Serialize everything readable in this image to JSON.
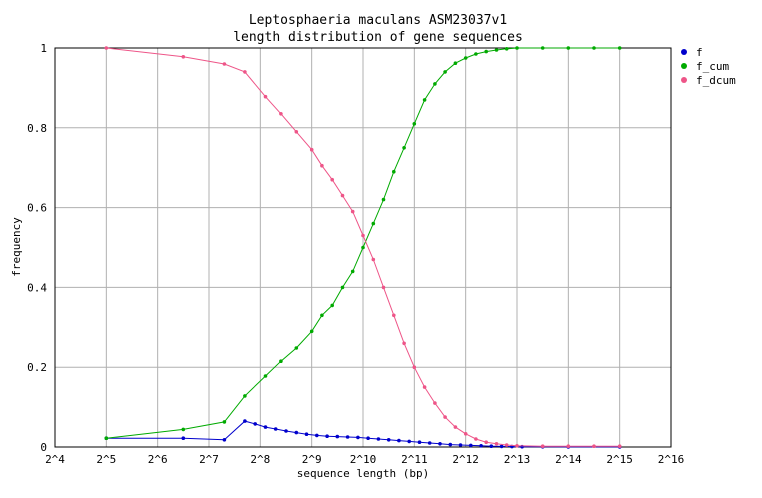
{
  "chart_data": {
    "type": "line",
    "title": "Leptosphaeria maculans ASM23037v1",
    "subtitle": "length distribution of gene sequences",
    "xlabel": "sequence length (bp)",
    "ylabel": "frequency",
    "x_scale": "log2",
    "xlim_exponent": [
      4,
      16
    ],
    "ylim": [
      0,
      1
    ],
    "x_ticks": [
      "2^4",
      "2^5",
      "2^6",
      "2^7",
      "2^8",
      "2^9",
      "2^10",
      "2^11",
      "2^12",
      "2^13",
      "2^14",
      "2^15",
      "2^16"
    ],
    "y_ticks": [
      "0",
      "0.2",
      "0.4",
      "0.6",
      "0.8",
      "1"
    ],
    "grid": true,
    "legend_position": "top-right",
    "series": [
      {
        "name": "f",
        "color": "#0000cc",
        "points": [
          [
            5.0,
            0.022
          ],
          [
            6.5,
            0.022
          ],
          [
            7.3,
            0.018
          ],
          [
            7.7,
            0.065
          ],
          [
            7.9,
            0.058
          ],
          [
            8.1,
            0.05
          ],
          [
            8.3,
            0.045
          ],
          [
            8.5,
            0.04
          ],
          [
            8.7,
            0.036
          ],
          [
            8.9,
            0.032
          ],
          [
            9.1,
            0.029
          ],
          [
            9.3,
            0.027
          ],
          [
            9.5,
            0.026
          ],
          [
            9.7,
            0.025
          ],
          [
            9.9,
            0.024
          ],
          [
            10.1,
            0.022
          ],
          [
            10.3,
            0.02
          ],
          [
            10.5,
            0.018
          ],
          [
            10.7,
            0.016
          ],
          [
            10.9,
            0.014
          ],
          [
            11.1,
            0.012
          ],
          [
            11.3,
            0.01
          ],
          [
            11.5,
            0.008
          ],
          [
            11.7,
            0.006
          ],
          [
            11.9,
            0.005
          ],
          [
            12.1,
            0.004
          ],
          [
            12.3,
            0.003
          ],
          [
            12.5,
            0.002
          ],
          [
            12.7,
            0.0015
          ],
          [
            12.9,
            0.001
          ],
          [
            13.1,
            0.0008
          ],
          [
            13.5,
            0.0005
          ],
          [
            14.0,
            0.0003
          ],
          [
            15.0,
            0.0002
          ]
        ]
      },
      {
        "name": "f_cum",
        "color": "#00aa00",
        "points": [
          [
            5.0,
            0.022
          ],
          [
            6.5,
            0.044
          ],
          [
            7.3,
            0.063
          ],
          [
            7.7,
            0.128
          ],
          [
            8.1,
            0.178
          ],
          [
            8.4,
            0.215
          ],
          [
            8.7,
            0.248
          ],
          [
            9.0,
            0.29
          ],
          [
            9.2,
            0.33
          ],
          [
            9.4,
            0.355
          ],
          [
            9.6,
            0.4
          ],
          [
            9.8,
            0.44
          ],
          [
            10.0,
            0.5
          ],
          [
            10.2,
            0.56
          ],
          [
            10.4,
            0.62
          ],
          [
            10.6,
            0.69
          ],
          [
            10.8,
            0.75
          ],
          [
            11.0,
            0.81
          ],
          [
            11.2,
            0.87
          ],
          [
            11.4,
            0.91
          ],
          [
            11.6,
            0.94
          ],
          [
            11.8,
            0.962
          ],
          [
            12.0,
            0.975
          ],
          [
            12.2,
            0.985
          ],
          [
            12.4,
            0.991
          ],
          [
            12.6,
            0.995
          ],
          [
            12.8,
            0.998
          ],
          [
            13.0,
            1.0
          ],
          [
            13.5,
            1.0
          ],
          [
            14.0,
            1.0
          ],
          [
            14.5,
            1.0
          ],
          [
            15.0,
            1.0
          ]
        ]
      },
      {
        "name": "f_dcum",
        "color": "#ee5588",
        "points": [
          [
            5.0,
            1.0
          ],
          [
            6.5,
            0.978
          ],
          [
            7.3,
            0.96
          ],
          [
            7.7,
            0.94
          ],
          [
            8.1,
            0.878
          ],
          [
            8.4,
            0.835
          ],
          [
            8.7,
            0.79
          ],
          [
            9.0,
            0.745
          ],
          [
            9.2,
            0.705
          ],
          [
            9.4,
            0.67
          ],
          [
            9.6,
            0.63
          ],
          [
            9.8,
            0.59
          ],
          [
            10.0,
            0.53
          ],
          [
            10.2,
            0.47
          ],
          [
            10.4,
            0.4
          ],
          [
            10.6,
            0.33
          ],
          [
            10.8,
            0.26
          ],
          [
            11.0,
            0.2
          ],
          [
            11.2,
            0.15
          ],
          [
            11.4,
            0.11
          ],
          [
            11.6,
            0.075
          ],
          [
            11.8,
            0.05
          ],
          [
            12.0,
            0.033
          ],
          [
            12.2,
            0.02
          ],
          [
            12.4,
            0.012
          ],
          [
            12.6,
            0.008
          ],
          [
            12.8,
            0.005
          ],
          [
            13.0,
            0.003
          ],
          [
            13.5,
            0.002
          ],
          [
            14.0,
            0.002
          ],
          [
            14.5,
            0.002
          ],
          [
            15.0,
            0.002
          ]
        ]
      }
    ]
  }
}
